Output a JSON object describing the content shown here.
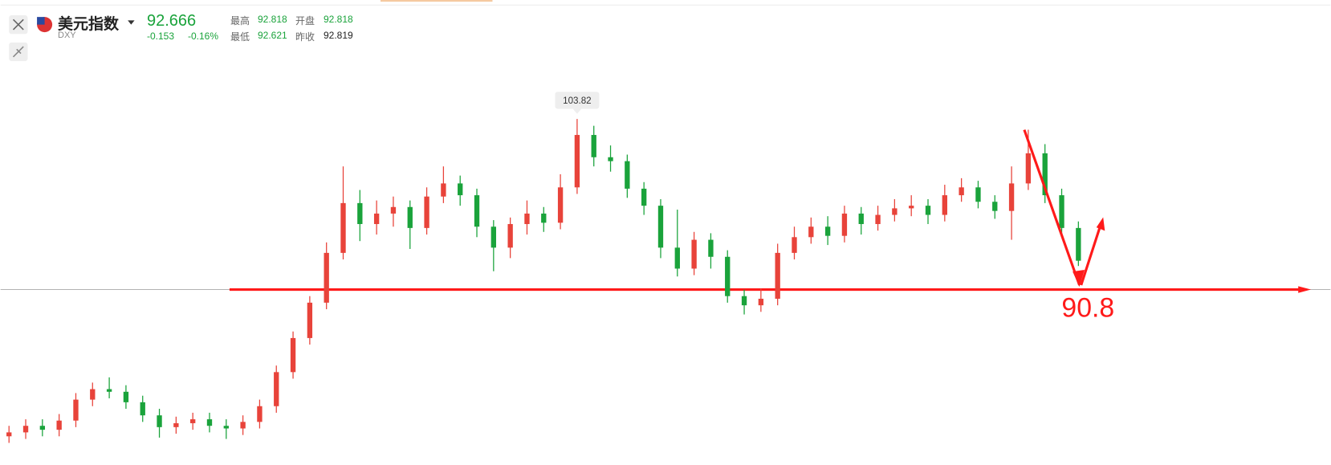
{
  "chart_data": {
    "type": "candlestick",
    "quote": {
      "name": "美元指数",
      "symbol": "DXY",
      "last": "92.666",
      "change": "-0.153",
      "change_pct": "-0.16%",
      "high_label": "最高",
      "high": "92.818",
      "open_label": "开盘",
      "open": "92.818",
      "low_label": "最低",
      "low": "92.621",
      "prev_close_label": "昨收",
      "prev_close": "92.819"
    },
    "ylim": [
      78.9,
      112.9
    ],
    "up_color": "#e8433a",
    "down_color": "#1aa33b",
    "open": [
      79.6,
      79.9,
      80.4,
      80.1,
      80.8,
      82.4,
      83.2,
      83.0,
      82.2,
      81.2,
      80.3,
      80.6,
      80.9,
      80.4,
      80.2,
      80.7,
      81.9,
      84.5,
      87.1,
      89.8,
      93.6,
      97.4,
      95.8,
      96.6,
      97.1,
      95.5,
      97.9,
      98.9,
      98.0,
      95.6,
      94.0,
      95.8,
      96.6,
      95.9,
      98.6,
      102.6,
      100.9,
      100.6,
      98.5,
      97.2,
      94.0,
      92.4,
      94.6,
      93.3,
      90.3,
      89.6,
      90.1,
      93.6,
      94.8,
      95.6,
      94.9,
      96.6,
      95.8,
      96.5,
      97.0,
      97.2,
      96.5,
      98.0,
      98.6,
      97.5,
      96.8,
      98.9,
      101.2,
      98.0,
      95.5
    ],
    "high": [
      80.4,
      80.9,
      80.9,
      81.3,
      82.9,
      83.7,
      84.1,
      83.5,
      82.7,
      81.7,
      81.1,
      81.4,
      81.4,
      80.9,
      81.2,
      82.4,
      85.0,
      87.6,
      90.3,
      94.4,
      100.2,
      98.4,
      97.6,
      97.9,
      97.6,
      98.6,
      100.2,
      99.5,
      98.5,
      96.1,
      96.3,
      97.6,
      97.1,
      99.6,
      103.82,
      103.3,
      101.8,
      101.1,
      99.0,
      97.7,
      96.9,
      95.2,
      95.1,
      93.8,
      90.8,
      90.9,
      94.3,
      95.6,
      96.3,
      96.4,
      97.2,
      97.1,
      97.2,
      97.7,
      98.0,
      97.7,
      98.8,
      99.3,
      99.1,
      98.0,
      100.2,
      103.0,
      101.9,
      98.5,
      96.0
    ],
    "low": [
      79.1,
      79.4,
      79.6,
      79.6,
      80.3,
      81.9,
      82.5,
      81.7,
      80.7,
      79.5,
      79.8,
      80.1,
      79.9,
      79.4,
      79.7,
      80.2,
      81.4,
      84.0,
      86.6,
      89.3,
      93.1,
      94.5,
      95.0,
      95.6,
      93.9,
      95.0,
      97.4,
      97.2,
      94.8,
      92.2,
      93.2,
      95.0,
      95.2,
      95.4,
      98.1,
      100.2,
      99.8,
      97.8,
      96.5,
      93.2,
      91.8,
      91.9,
      92.4,
      89.8,
      88.9,
      89.1,
      89.6,
      93.1,
      94.3,
      94.2,
      94.4,
      95.0,
      95.3,
      96.0,
      96.4,
      95.8,
      96.0,
      97.5,
      97.0,
      96.2,
      94.6,
      98.4,
      97.4,
      95.0,
      92.6
    ],
    "close": [
      79.9,
      80.4,
      80.1,
      80.8,
      82.4,
      83.2,
      83.0,
      82.2,
      81.2,
      80.3,
      80.6,
      80.9,
      80.4,
      80.2,
      80.7,
      81.9,
      84.5,
      87.1,
      89.8,
      93.6,
      97.4,
      95.8,
      96.6,
      97.1,
      95.5,
      97.9,
      98.9,
      98.0,
      95.6,
      94.0,
      95.8,
      96.6,
      95.9,
      98.6,
      102.6,
      100.9,
      100.6,
      98.5,
      97.2,
      94.0,
      92.4,
      94.6,
      93.3,
      90.3,
      89.6,
      90.1,
      93.6,
      94.8,
      95.6,
      94.9,
      96.6,
      95.8,
      96.5,
      97.0,
      97.2,
      96.5,
      98.0,
      98.6,
      97.5,
      96.8,
      98.9,
      101.2,
      98.0,
      95.5,
      93.0
    ],
    "max_label": {
      "index": 34,
      "value": 103.82
    },
    "support": {
      "value": 90.8,
      "color": "#ff1a1a"
    }
  }
}
